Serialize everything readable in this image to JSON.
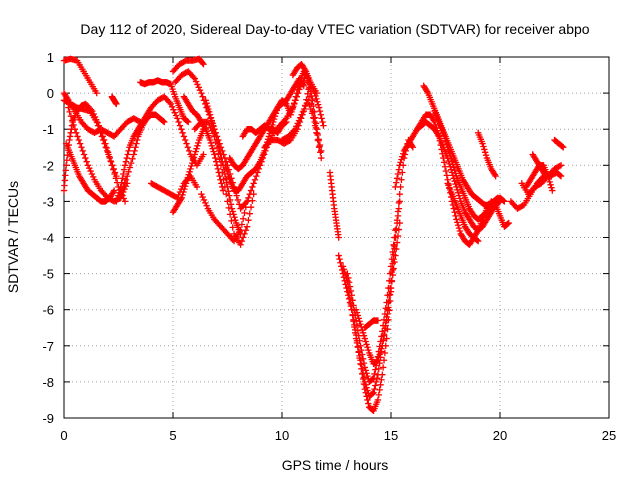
{
  "chart_data": {
    "type": "scatter",
    "title": "Day 112 of 2020, Sidereal Day-to-day VTEC variation (SDTVAR) for receiver abpo",
    "xlabel": "GPS time / hours",
    "ylabel": "SDTVAR / TECUs",
    "xlim": [
      0,
      25
    ],
    "ylim": [
      -9,
      1
    ],
    "xticks": [
      0,
      5,
      10,
      15,
      20,
      25
    ],
    "yticks": [
      1,
      0,
      -1,
      -2,
      -3,
      -4,
      -5,
      -6,
      -7,
      -8,
      -9
    ],
    "grid": true,
    "marker": "+",
    "color": "#ff0000",
    "series": [
      {
        "x": [
          0.0,
          0.3,
          0.6,
          0.9,
          1.2,
          1.5
        ],
        "y": [
          0.9,
          0.95,
          0.9,
          0.6,
          0.3,
          0.0
        ]
      },
      {
        "x": [
          0.0,
          0.2,
          0.5,
          0.8,
          1.1,
          1.4,
          1.7,
          2.0,
          2.3,
          2.6,
          2.9,
          3.2,
          3.5
        ],
        "y": [
          0.0,
          -0.2,
          -0.5,
          -0.8,
          -1.0,
          -1.1,
          -1.0,
          -1.1,
          -1.2,
          -1.0,
          -0.8,
          -0.7,
          -0.8
        ]
      },
      {
        "x": [
          0.0,
          0.3,
          0.6,
          0.9,
          1.2,
          1.5,
          1.8,
          2.1,
          2.4
        ],
        "y": [
          -0.2,
          -0.3,
          -0.4,
          -0.45,
          -0.5,
          -0.8,
          -1.3,
          -1.8,
          -2.3
        ]
      },
      {
        "x": [
          0.0,
          0.1,
          0.25,
          0.4,
          0.6,
          0.8,
          1.0,
          1.3,
          1.6,
          1.9,
          2.2,
          2.5,
          2.8
        ],
        "y": [
          -2.7,
          -2.0,
          -1.3,
          -0.8,
          -0.5,
          -0.35,
          -0.3,
          -0.5,
          -0.9,
          -1.4,
          -2.0,
          -2.6,
          -3.0
        ]
      },
      {
        "x": [
          0.1,
          0.3,
          0.5,
          0.7,
          0.9,
          1.1,
          1.3,
          1.5,
          1.7,
          1.9,
          2.1,
          2.3
        ],
        "y": [
          -1.4,
          -1.7,
          -2.0,
          -2.3,
          -2.5,
          -2.7,
          -2.8,
          -2.9,
          -3.0,
          -3.0,
          -2.9,
          -2.7
        ]
      },
      {
        "x": [
          0.2,
          0.5,
          0.8,
          1.1,
          1.4,
          1.7,
          2.0,
          2.3,
          2.6,
          2.9
        ],
        "y": [
          -0.4,
          -1.0,
          -1.5,
          -2.0,
          -2.4,
          -2.7,
          -2.9,
          -3.0,
          -2.9,
          -2.5
        ]
      },
      {
        "x": [
          2.4,
          2.6,
          2.8,
          3.0,
          3.2,
          3.4,
          3.6,
          3.8,
          4.0,
          4.3,
          4.6,
          4.9,
          5.2,
          5.5,
          5.8,
          6.1,
          6.4
        ],
        "y": [
          -3.0,
          -2.6,
          -2.0,
          -1.5,
          -1.2,
          -1.0,
          -0.8,
          -0.6,
          -0.4,
          -0.2,
          -0.1,
          -0.3,
          -0.7,
          -1.2,
          -1.7,
          -2.0,
          -1.7
        ]
      },
      {
        "x": [
          2.6,
          2.9,
          3.2,
          3.4,
          3.6,
          3.8,
          4.0,
          4.2,
          4.4,
          4.6
        ],
        "y": [
          -2.8,
          -2.3,
          -1.7,
          -1.2,
          -0.9,
          -0.7,
          -0.6,
          -0.6,
          -0.7,
          -0.8
        ]
      },
      {
        "x": [
          2.2,
          2.3,
          2.4
        ],
        "y": [
          -0.1,
          -0.2,
          -0.3
        ]
      },
      {
        "x": [
          3.5,
          3.7,
          3.9,
          4.1,
          4.3,
          4.5,
          4.7,
          4.9,
          5.1,
          5.3,
          5.5,
          5.7
        ],
        "y": [
          0.3,
          0.25,
          0.3,
          0.3,
          0.35,
          0.3,
          0.3,
          0.25,
          -0.1,
          -0.4,
          -0.7,
          -0.8
        ]
      },
      {
        "x": [
          4.0,
          4.3,
          4.6,
          4.9,
          5.2,
          5.5,
          5.8,
          6.1
        ],
        "y": [
          -2.5,
          -2.6,
          -2.7,
          -2.8,
          -2.9,
          -2.5,
          -2.3,
          -2.6
        ]
      },
      {
        "x": [
          5.0,
          5.2,
          5.4,
          5.6,
          5.8,
          6.0,
          6.2,
          6.4
        ],
        "y": [
          -3.3,
          -3.1,
          -2.9,
          -2.5,
          -2.1,
          -1.7,
          -1.3,
          -1.0
        ]
      },
      {
        "x": [
          5.0,
          5.3,
          5.6,
          5.9,
          6.2,
          6.4
        ],
        "y": [
          0.6,
          0.8,
          0.9,
          0.9,
          0.95,
          0.8
        ]
      },
      {
        "x": [
          5.1,
          5.4,
          5.7,
          6.0,
          6.3,
          6.6,
          6.9,
          7.2,
          7.5,
          7.8,
          8.1,
          8.4,
          8.7,
          9.0,
          9.3,
          9.6,
          9.9,
          10.2,
          10.5,
          10.8,
          11.1,
          11.4,
          11.7
        ],
        "y": [
          0.3,
          0.5,
          0.6,
          0.4,
          0.0,
          -0.5,
          -1.0,
          -1.5,
          -2.0,
          -2.6,
          -3.2,
          -3.0,
          -2.5,
          -2.0,
          -1.5,
          -1.1,
          -0.9,
          -0.7,
          -0.4,
          0.1,
          0.5,
          -0.5,
          -1.5
        ]
      },
      {
        "x": [
          5.5,
          5.7,
          5.9,
          6.1,
          6.3,
          6.5,
          6.7,
          6.9,
          7.1,
          7.3
        ],
        "y": [
          -0.1,
          -0.3,
          -0.5,
          -0.6,
          -0.8,
          -1.0,
          -1.3,
          -1.7,
          -2.2,
          -2.7
        ]
      },
      {
        "x": [
          6.0,
          6.3,
          6.6,
          6.9,
          7.2,
          7.5,
          7.8,
          8.1,
          8.4,
          8.7
        ],
        "y": [
          -1.0,
          -0.8,
          -0.8,
          -1.2,
          -2.0,
          -3.0,
          -3.9,
          -4.2,
          -3.7,
          -2.8
        ]
      },
      {
        "x": [
          6.3,
          6.6,
          6.9,
          7.2,
          7.5,
          7.8,
          8.1,
          8.4
        ],
        "y": [
          -2.8,
          -3.2,
          -3.5,
          -3.7,
          -3.9,
          -4.1,
          -3.8,
          -3.0
        ]
      },
      {
        "x": [
          6.5,
          6.7,
          6.9,
          7.1,
          7.3,
          7.5,
          7.7,
          7.9,
          8.1
        ],
        "y": [
          -0.2,
          -0.6,
          -1.0,
          -1.5,
          -2.0,
          -2.6,
          -3.2,
          -3.6,
          -3.9
        ]
      },
      {
        "x": [
          7.4,
          7.6,
          7.8,
          8.0,
          8.2,
          8.4,
          8.6,
          8.8,
          9.0,
          9.2,
          9.4,
          9.6,
          9.8,
          10.0,
          10.2,
          10.4,
          10.6,
          10.8,
          11.0,
          11.2,
          11.4,
          11.6,
          11.8
        ],
        "y": [
          -2.0,
          -2.4,
          -2.7,
          -2.7,
          -2.5,
          -2.3,
          -2.2,
          -2.1,
          -1.9,
          -1.6,
          -1.2,
          -0.8,
          -0.4,
          -0.2,
          -0.3,
          -0.6,
          -0.2,
          0.3,
          0.6,
          0.4,
          -0.2,
          -1.0,
          -1.8
        ]
      },
      {
        "x": [
          8.2,
          8.4,
          8.6,
          8.8,
          9.0,
          9.2,
          9.4,
          9.6,
          9.8,
          10.0,
          10.2
        ],
        "y": [
          -1.2,
          -1.0,
          -1.0,
          -1.1,
          -1.0,
          -0.9,
          -1.0,
          -1.0,
          -1.1,
          -0.9,
          -0.8
        ]
      },
      {
        "x": [
          7.6,
          7.8,
          8.0,
          8.2,
          8.4,
          8.6,
          8.8,
          9.0,
          9.2,
          9.4,
          9.6,
          9.8,
          10.0,
          10.2,
          10.4,
          10.6,
          10.8,
          11.0
        ],
        "y": [
          -1.8,
          -2.0,
          -2.1,
          -2.0,
          -1.8,
          -1.6,
          -1.4,
          -1.2,
          -1.0,
          -0.8,
          -0.6,
          -0.4,
          -0.3,
          -0.2,
          0.0,
          0.2,
          0.4,
          0.2
        ]
      },
      {
        "x": [
          9.2,
          9.5,
          9.8,
          10.1,
          10.4,
          10.7,
          11.0,
          11.3,
          11.6
        ],
        "y": [
          -1.5,
          -1.3,
          -1.3,
          -1.4,
          -1.3,
          -1.0,
          -0.5,
          0.3,
          0.0
        ]
      },
      {
        "x": [
          10.0,
          10.3,
          10.6,
          10.9,
          11.2,
          11.5,
          11.8
        ],
        "y": [
          -1.3,
          -1.2,
          -1.0,
          -0.6,
          -0.2,
          -0.8,
          -1.6
        ]
      },
      {
        "x": [
          10.5,
          10.7,
          10.9,
          11.1,
          11.3,
          11.5,
          11.7,
          11.9
        ],
        "y": [
          0.5,
          0.7,
          0.8,
          0.6,
          0.3,
          0.0,
          -0.4,
          -0.9
        ]
      },
      {
        "x": [
          12.2,
          12.3,
          12.4,
          12.5,
          12.6
        ],
        "y": [
          -2.2,
          -2.7,
          -3.2,
          -3.6,
          -4.0
        ]
      },
      {
        "x": [
          12.6,
          12.8,
          13.0,
          13.2,
          13.4,
          13.6,
          13.8,
          14.0,
          14.2,
          14.4,
          14.6,
          14.8,
          15.0,
          15.2,
          15.4,
          15.6,
          15.8,
          16.0
        ],
        "y": [
          -4.5,
          -5.0,
          -5.5,
          -6.0,
          -6.7,
          -7.5,
          -8.2,
          -8.7,
          -8.8,
          -8.5,
          -7.8,
          -6.8,
          -5.5,
          -4.0,
          -2.8,
          -1.8,
          -1.3,
          -1.5
        ]
      },
      {
        "x": [
          12.8,
          13.0,
          13.2,
          13.4,
          13.6,
          13.8,
          14.0,
          14.2,
          14.4,
          14.6,
          14.8,
          15.0,
          15.2,
          15.4
        ],
        "y": [
          -4.8,
          -5.2,
          -6.0,
          -6.8,
          -7.4,
          -8.0,
          -8.4,
          -8.3,
          -7.8,
          -7.0,
          -6.2,
          -5.2,
          -4.0,
          -3.0
        ]
      },
      {
        "x": [
          13.0,
          13.2,
          13.4,
          13.6,
          13.8,
          14.0,
          14.2,
          14.4,
          14.6,
          14.8,
          15.0,
          15.2
        ],
        "y": [
          -5.0,
          -5.6,
          -6.3,
          -7.0,
          -7.6,
          -8.0,
          -7.9,
          -7.3,
          -6.6,
          -5.8,
          -4.8,
          -3.8
        ]
      },
      {
        "x": [
          13.4,
          13.6,
          13.8,
          14.0,
          14.2,
          14.4,
          14.6,
          14.8,
          15.0,
          15.2,
          15.4
        ],
        "y": [
          -6.0,
          -6.4,
          -6.8,
          -7.2,
          -7.5,
          -7.4,
          -7.0,
          -6.3,
          -5.4,
          -4.5,
          -3.6
        ]
      },
      {
        "x": [
          13.8,
          14.0,
          14.2,
          14.4
        ],
        "y": [
          -6.5,
          -6.4,
          -6.3,
          -6.3
        ]
      },
      {
        "x": [
          15.2,
          15.4,
          15.6,
          15.8,
          16.0,
          16.2,
          16.4,
          16.6,
          16.8,
          17.0,
          17.2,
          17.4,
          17.6,
          17.8,
          18.0,
          18.2,
          18.4,
          18.6,
          18.8,
          19.0,
          19.2,
          19.4,
          19.6,
          19.8,
          20.0,
          20.2,
          20.4
        ],
        "y": [
          -2.6,
          -2.0,
          -1.6,
          -1.4,
          -1.2,
          -1.0,
          -0.8,
          -0.6,
          -0.6,
          -0.8,
          -1.2,
          -1.8,
          -2.4,
          -3.0,
          -3.5,
          -3.9,
          -4.1,
          -4.2,
          -4.0,
          -3.8,
          -3.5,
          -3.2,
          -3.0,
          -3.1,
          -3.4,
          -3.7,
          -3.6
        ]
      },
      {
        "x": [
          16.2,
          16.4,
          16.6,
          16.8,
          17.0,
          17.2,
          17.4,
          17.6,
          17.8,
          18.0,
          18.2,
          18.4,
          18.6,
          18.8,
          19.0,
          19.2,
          19.4,
          19.6,
          19.8,
          20.0
        ],
        "y": [
          -1.0,
          -0.9,
          -0.8,
          -0.9,
          -1.0,
          -1.2,
          -1.5,
          -1.8,
          -2.2,
          -2.6,
          -3.0,
          -3.3,
          -3.5,
          -3.7,
          -3.8,
          -3.7,
          -3.5,
          -3.3,
          -3.1,
          -3.0
        ]
      },
      {
        "x": [
          16.5,
          16.7,
          16.9,
          17.1,
          17.3,
          17.5,
          17.7,
          17.9,
          18.1,
          18.3,
          18.5,
          18.7,
          18.9,
          19.1,
          19.3,
          19.5,
          19.7,
          19.9
        ],
        "y": [
          0.2,
          0.0,
          -0.3,
          -0.6,
          -0.9,
          -1.2,
          -1.5,
          -1.8,
          -2.1,
          -2.4,
          -2.6,
          -2.8,
          -2.9,
          -3.0,
          -3.1,
          -3.1,
          -3.0,
          -2.9
        ]
      },
      {
        "x": [
          17.0,
          17.2,
          17.4,
          17.6,
          17.8,
          18.0,
          18.2,
          18.4,
          18.6,
          18.8,
          19.0,
          19.2,
          19.4,
          19.6,
          19.8,
          20.0,
          20.2
        ],
        "y": [
          -0.5,
          -0.8,
          -1.1,
          -1.5,
          -1.9,
          -2.3,
          -2.6,
          -2.9,
          -3.2,
          -3.4,
          -3.5,
          -3.4,
          -3.3,
          -3.2,
          -3.0,
          -2.9,
          -3.0
        ]
      },
      {
        "x": [
          17.6,
          17.8,
          18.0,
          18.2,
          18.4,
          18.6,
          18.8,
          19.0
        ],
        "y": [
          -2.5,
          -2.8,
          -3.1,
          -3.4,
          -3.7,
          -3.9,
          -4.0,
          -4.1
        ]
      },
      {
        "x": [
          19.0,
          19.2,
          19.4,
          19.6,
          19.8
        ],
        "y": [
          -1.1,
          -1.4,
          -1.8,
          -2.1,
          -2.3
        ]
      },
      {
        "x": [
          20.5,
          20.8,
          21.1,
          21.4,
          21.7,
          22.0,
          22.3,
          22.6,
          22.8
        ],
        "y": [
          -3.0,
          -3.2,
          -3.1,
          -2.8,
          -2.5,
          -2.3,
          -2.3,
          -2.2,
          -2.3
        ]
      },
      {
        "x": [
          21.0,
          21.3,
          21.6,
          21.9,
          22.2,
          22.5,
          22.8
        ],
        "y": [
          -2.5,
          -2.8,
          -2.6,
          -2.5,
          -2.3,
          -2.1,
          -2.0
        ]
      },
      {
        "x": [
          21.2,
          21.4,
          21.6,
          21.8,
          22.0,
          22.2,
          22.4
        ],
        "y": [
          -2.6,
          -2.4,
          -2.2,
          -2.0,
          -2.0,
          -2.3,
          -2.7
        ]
      },
      {
        "x": [
          21.5,
          21.7,
          21.9,
          22.1
        ],
        "y": [
          -1.7,
          -1.9,
          -2.1,
          -2.3
        ]
      },
      {
        "x": [
          22.5,
          22.7,
          22.9
        ],
        "y": [
          -1.3,
          -1.4,
          -1.5
        ]
      }
    ]
  }
}
